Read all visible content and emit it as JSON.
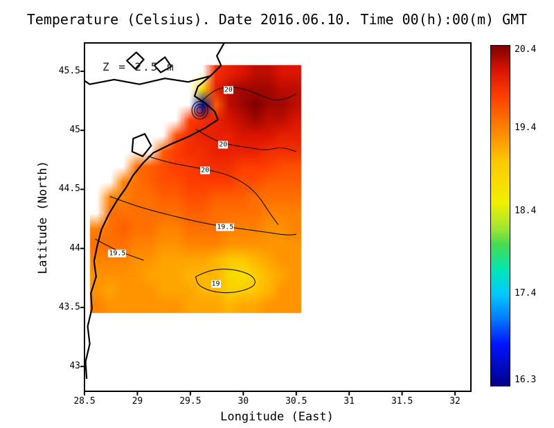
{
  "title": "Temperature (Celsius). Date 2016.06.10. Time 00(h):00(m) GMT",
  "annotation": "Z = 2.5 m",
  "chart_data": {
    "type": "heatmap",
    "title": "Temperature (Celsius). Date 2016.06.10. Time 00(h):00(m) GMT",
    "subtitle": "Z = 2.5 m",
    "xlabel": "Longitude (East)",
    "ylabel": "Latitude (North)",
    "xlim": [
      28.5,
      32.15
    ],
    "ylim": [
      42.79,
      45.74
    ],
    "x_tick_values": [
      28.5,
      29,
      29.5,
      30,
      30.5,
      31,
      31.5,
      32
    ],
    "x_tick_labels": [
      "28.5",
      "29",
      "29.5",
      "30",
      "30.5",
      "31",
      "31.5",
      "32"
    ],
    "y_tick_values": [
      45.5,
      45,
      44.5,
      44,
      43.5,
      43
    ],
    "y_tick_labels": [
      "45.5",
      "45",
      "44.5",
      "44",
      "43.5",
      "43"
    ],
    "grid": {
      "lon_min": 28.55,
      "lon_max": 30.55,
      "lat_max": 45.55,
      "lat_min": 43.45,
      "nx": 16,
      "ny": 16,
      "values": [
        [
          null,
          null,
          null,
          null,
          null,
          null,
          null,
          null,
          null,
          19.9,
          20.0,
          20.1,
          20.2,
          20.2,
          20.1,
          20.1
        ],
        [
          null,
          null,
          null,
          null,
          null,
          null,
          null,
          null,
          18.8,
          20.0,
          20.2,
          20.3,
          20.3,
          20.3,
          20.2,
          20.2
        ],
        [
          null,
          null,
          null,
          null,
          null,
          null,
          null,
          null,
          16.5,
          19.6,
          20.2,
          20.3,
          20.4,
          20.3,
          20.3,
          20.2
        ],
        [
          null,
          null,
          null,
          null,
          null,
          null,
          null,
          19.8,
          19.9,
          20.0,
          20.1,
          20.2,
          20.3,
          20.2,
          20.2,
          20.1
        ],
        [
          null,
          null,
          null,
          null,
          null,
          null,
          19.7,
          19.9,
          20.0,
          20.0,
          20.0,
          20.1,
          20.1,
          20.1,
          20.0,
          20.0
        ],
        [
          null,
          null,
          null,
          null,
          null,
          19.6,
          19.8,
          19.9,
          19.9,
          20.0,
          20.0,
          20.0,
          20.0,
          19.9,
          19.9,
          19.9
        ],
        [
          null,
          null,
          null,
          19.5,
          19.6,
          19.7,
          19.8,
          19.8,
          19.9,
          19.9,
          19.9,
          19.8,
          19.8,
          19.8,
          19.7,
          19.7
        ],
        [
          null,
          null,
          19.4,
          19.5,
          19.6,
          19.7,
          19.7,
          19.8,
          19.8,
          19.8,
          19.8,
          19.7,
          19.7,
          19.6,
          19.6,
          19.6
        ],
        [
          null,
          19.4,
          19.4,
          19.5,
          19.5,
          19.6,
          19.6,
          19.7,
          19.7,
          19.6,
          19.6,
          19.6,
          19.5,
          19.5,
          19.5,
          19.5
        ],
        [
          null,
          19.5,
          19.5,
          19.5,
          19.5,
          19.5,
          19.5,
          19.6,
          19.6,
          19.5,
          19.5,
          19.5,
          19.5,
          19.4,
          19.4,
          19.4
        ],
        [
          19.4,
          19.5,
          19.6,
          19.5,
          19.5,
          19.4,
          19.4,
          19.5,
          19.5,
          19.5,
          19.4,
          19.4,
          19.4,
          19.3,
          19.3,
          19.4
        ],
        [
          19.5,
          19.5,
          19.5,
          19.4,
          19.4,
          19.3,
          19.3,
          19.4,
          19.4,
          19.4,
          19.3,
          19.3,
          19.3,
          19.3,
          19.3,
          19.3
        ],
        [
          19.4,
          19.4,
          19.4,
          19.3,
          19.3,
          19.2,
          19.2,
          19.2,
          19.2,
          19.1,
          19.0,
          19.0,
          19.1,
          19.2,
          19.3,
          19.3
        ],
        [
          19.3,
          19.3,
          19.3,
          19.3,
          19.2,
          19.2,
          19.2,
          19.1,
          19.1,
          19.1,
          18.8,
          18.7,
          18.9,
          19.1,
          19.2,
          19.3
        ],
        [
          19.3,
          19.2,
          19.3,
          19.3,
          19.3,
          19.2,
          19.2,
          19.2,
          19.1,
          19.1,
          18.9,
          18.9,
          19.0,
          19.1,
          19.3,
          19.3
        ],
        [
          19.4,
          19.3,
          19.3,
          19.3,
          19.3,
          19.3,
          19.3,
          19.2,
          19.2,
          19.2,
          19.1,
          19.2,
          19.2,
          19.3,
          19.3,
          19.3
        ]
      ]
    },
    "colormap_stops": [
      [
        16.3,
        "#000089"
      ],
      [
        16.8,
        "#0014FF"
      ],
      [
        17.1,
        "#0078FF"
      ],
      [
        17.4,
        "#00C8FF"
      ],
      [
        17.7,
        "#00E6B4"
      ],
      [
        18.0,
        "#46DC50"
      ],
      [
        18.2,
        "#A0E632"
      ],
      [
        18.5,
        "#F0F000"
      ],
      [
        19.0,
        "#FFC800"
      ],
      [
        19.4,
        "#FF8200"
      ],
      [
        19.8,
        "#FF3C00"
      ],
      [
        20.1,
        "#DC1400"
      ],
      [
        20.4,
        "#800000"
      ]
    ],
    "colorbar": {
      "min": 16.3,
      "max": 20.4,
      "tick_values": [
        20.4,
        19.4,
        18.4,
        17.4,
        16.3
      ],
      "tick_labels": [
        "20.4",
        "19.4",
        "18.4",
        "17.4",
        "16.3"
      ]
    },
    "contour_labels": [
      {
        "text": "20",
        "lon": 29.86,
        "lat": 45.34
      },
      {
        "text": "20",
        "lon": 29.81,
        "lat": 44.88
      },
      {
        "text": "20",
        "lon": 29.64,
        "lat": 44.66
      },
      {
        "text": "19.5",
        "lon": 29.83,
        "lat": 44.18
      },
      {
        "text": "19.5",
        "lon": 28.81,
        "lat": 43.96
      },
      {
        "text": "19",
        "lon": 29.74,
        "lat": 43.7
      }
    ],
    "contours": [
      {
        "level": "20",
        "points": [
          [
            29.6,
            45.24
          ],
          [
            29.68,
            45.31
          ],
          [
            29.78,
            45.36
          ],
          [
            29.9,
            45.37
          ],
          [
            30.05,
            45.34
          ],
          [
            30.18,
            45.29
          ],
          [
            30.3,
            45.25
          ],
          [
            30.42,
            45.27
          ],
          [
            30.5,
            45.31
          ]
        ]
      },
      {
        "level": "20",
        "points": [
          [
            29.55,
            45.01
          ],
          [
            29.66,
            44.95
          ],
          [
            29.78,
            44.9
          ],
          [
            29.92,
            44.87
          ],
          [
            30.08,
            44.85
          ],
          [
            30.22,
            44.83
          ],
          [
            30.36,
            44.86
          ],
          [
            30.5,
            44.82
          ]
        ]
      },
      {
        "level": "20",
        "points": [
          [
            29.1,
            44.78
          ],
          [
            29.28,
            44.73
          ],
          [
            29.46,
            44.7
          ],
          [
            29.64,
            44.67
          ],
          [
            29.84,
            44.63
          ],
          [
            30.02,
            44.55
          ],
          [
            30.15,
            44.44
          ],
          [
            30.24,
            44.31
          ],
          [
            30.33,
            44.2
          ]
        ]
      },
      {
        "level": "19.5",
        "points": [
          [
            28.74,
            44.44
          ],
          [
            28.95,
            44.37
          ],
          [
            29.18,
            44.31
          ],
          [
            29.45,
            44.25
          ],
          [
            29.7,
            44.2
          ],
          [
            29.95,
            44.17
          ],
          [
            30.2,
            44.14
          ],
          [
            30.42,
            44.11
          ],
          [
            30.5,
            44.12
          ]
        ]
      },
      {
        "level": "19.5",
        "points": [
          [
            28.6,
            44.08
          ],
          [
            28.74,
            44.01
          ],
          [
            28.9,
            43.95
          ],
          [
            29.06,
            43.9
          ]
        ]
      },
      {
        "level": "19",
        "points": [
          [
            29.55,
            43.76
          ],
          [
            29.66,
            43.81
          ],
          [
            29.82,
            43.83
          ],
          [
            29.98,
            43.81
          ],
          [
            30.1,
            43.76
          ],
          [
            30.12,
            43.69
          ],
          [
            30.0,
            43.64
          ],
          [
            29.84,
            43.62
          ],
          [
            29.68,
            43.64
          ],
          [
            29.57,
            43.69
          ],
          [
            29.55,
            43.76
          ]
        ]
      }
    ],
    "cold_spot_rings": {
      "center": [
        29.59,
        45.17
      ],
      "radii": [
        0.028,
        0.05,
        0.075
      ]
    },
    "coastlines": [
      {
        "name": "coast-main",
        "closed": false,
        "points": [
          [
            29.82,
            45.74
          ],
          [
            29.75,
            45.63
          ],
          [
            29.79,
            45.55
          ],
          [
            29.69,
            45.46
          ],
          [
            29.57,
            45.37
          ],
          [
            29.54,
            45.29
          ],
          [
            29.64,
            45.23
          ],
          [
            29.73,
            45.16
          ],
          [
            29.76,
            45.09
          ],
          [
            29.64,
            45.02
          ],
          [
            29.49,
            44.95
          ],
          [
            29.31,
            44.88
          ],
          [
            29.15,
            44.81
          ],
          [
            29.05,
            44.72
          ],
          [
            28.96,
            44.62
          ],
          [
            28.89,
            44.51
          ],
          [
            28.81,
            44.41
          ],
          [
            28.73,
            44.29
          ],
          [
            28.66,
            44.16
          ],
          [
            28.62,
            44.02
          ],
          [
            28.59,
            43.89
          ],
          [
            28.61,
            43.76
          ],
          [
            28.56,
            43.62
          ],
          [
            28.57,
            43.49
          ],
          [
            28.53,
            43.34
          ],
          [
            28.55,
            43.19
          ],
          [
            28.51,
            43.04
          ],
          [
            28.52,
            42.9
          ]
        ]
      },
      {
        "name": "danube-river",
        "closed": false,
        "points": [
          [
            29.69,
            45.46
          ],
          [
            29.48,
            45.41
          ],
          [
            29.26,
            45.44
          ],
          [
            29.02,
            45.39
          ],
          [
            28.78,
            45.43
          ],
          [
            28.55,
            45.39
          ],
          [
            28.5,
            45.42
          ]
        ]
      },
      {
        "name": "lake-1",
        "closed": true,
        "points": [
          [
            28.9,
            45.59
          ],
          [
            28.99,
            45.66
          ],
          [
            29.06,
            45.6
          ],
          [
            28.98,
            45.52
          ],
          [
            28.9,
            45.59
          ]
        ]
      },
      {
        "name": "lake-2",
        "closed": true,
        "points": [
          [
            29.16,
            45.55
          ],
          [
            29.26,
            45.62
          ],
          [
            29.32,
            45.54
          ],
          [
            29.22,
            45.49
          ],
          [
            29.16,
            45.55
          ]
        ]
      },
      {
        "name": "lagoon",
        "closed": true,
        "points": [
          [
            28.96,
            44.93
          ],
          [
            29.07,
            44.97
          ],
          [
            29.13,
            44.87
          ],
          [
            29.05,
            44.78
          ],
          [
            28.95,
            44.82
          ],
          [
            28.96,
            44.93
          ]
        ]
      }
    ]
  }
}
